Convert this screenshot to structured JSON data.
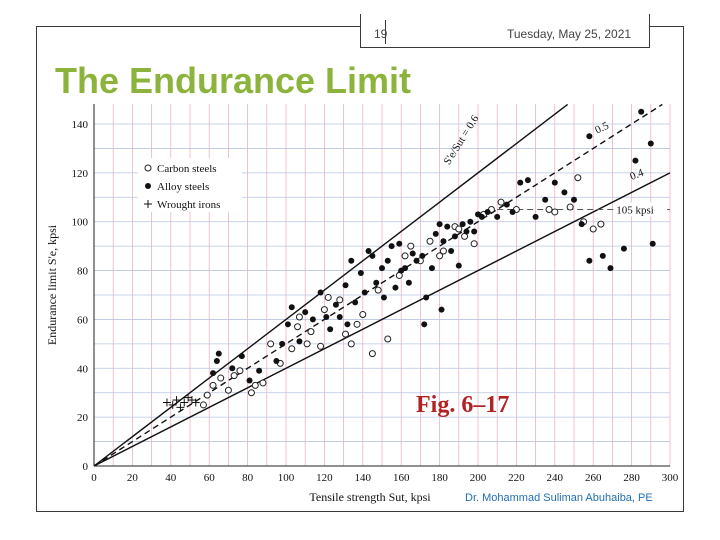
{
  "slide": {
    "number": "19",
    "date": "Tuesday, May 25, 2021",
    "title": "The Endurance Limit",
    "figure_label": "Fig. 6–17",
    "author": "Dr. Mohammad Suliman Abuhaiba, PE"
  },
  "chart_data": {
    "type": "scatter",
    "title": "",
    "xlabel": "Tensile strength Sut, kpsi",
    "ylabel": "Endurance limit S'e, kpsi",
    "xlim": [
      0,
      300
    ],
    "ylim": [
      0,
      140
    ],
    "xticks": [
      "0",
      "20",
      "40",
      "60",
      "80",
      "100",
      "120",
      "140",
      "160",
      "180",
      "200",
      "220",
      "240",
      "260",
      "280",
      "300"
    ],
    "yticks": [
      "0",
      "20",
      "40",
      "60",
      "80",
      "100",
      "120",
      "140"
    ],
    "grid": true,
    "legend_position": "top-left",
    "series": [
      {
        "name": "Carbon steels",
        "marker": "open-circle",
        "color": "#222222",
        "points": [
          [
            57,
            25
          ],
          [
            59,
            29
          ],
          [
            62,
            33
          ],
          [
            66,
            36
          ],
          [
            70,
            31
          ],
          [
            73,
            37
          ],
          [
            76,
            39
          ],
          [
            82,
            30
          ],
          [
            84,
            33
          ],
          [
            88,
            34
          ],
          [
            92,
            50
          ],
          [
            97,
            42
          ],
          [
            103,
            48
          ],
          [
            106,
            57
          ],
          [
            107,
            61
          ],
          [
            111,
            50
          ],
          [
            113,
            55
          ],
          [
            118,
            49
          ],
          [
            120,
            64
          ],
          [
            122,
            69
          ],
          [
            128,
            68
          ],
          [
            131,
            54
          ],
          [
            134,
            50
          ],
          [
            137,
            58
          ],
          [
            140,
            62
          ],
          [
            145,
            46
          ],
          [
            148,
            72
          ],
          [
            153,
            52
          ],
          [
            159,
            78
          ],
          [
            162,
            86
          ],
          [
            165,
            90
          ],
          [
            170,
            84
          ],
          [
            175,
            92
          ],
          [
            180,
            86
          ],
          [
            182,
            88
          ],
          [
            188,
            98
          ],
          [
            190,
            97
          ],
          [
            193,
            94
          ],
          [
            198,
            91
          ],
          [
            203,
            103
          ],
          [
            207,
            105
          ],
          [
            212,
            108
          ],
          [
            220,
            105
          ],
          [
            237,
            105
          ],
          [
            240,
            104
          ],
          [
            248,
            106
          ],
          [
            252,
            118
          ],
          [
            255,
            100
          ],
          [
            260,
            97
          ],
          [
            264,
            99
          ]
        ]
      },
      {
        "name": "Alloy steels",
        "marker": "filled-circle",
        "color": "#111111",
        "points": [
          [
            62,
            38
          ],
          [
            64,
            43
          ],
          [
            65,
            46
          ],
          [
            72,
            40
          ],
          [
            77,
            45
          ],
          [
            81,
            35
          ],
          [
            86,
            39
          ],
          [
            95,
            43
          ],
          [
            98,
            50
          ],
          [
            101,
            58
          ],
          [
            103,
            65
          ],
          [
            107,
            51
          ],
          [
            110,
            63
          ],
          [
            114,
            60
          ],
          [
            118,
            71
          ],
          [
            121,
            61
          ],
          [
            123,
            56
          ],
          [
            126,
            66
          ],
          [
            128,
            61
          ],
          [
            131,
            74
          ],
          [
            132,
            58
          ],
          [
            134,
            84
          ],
          [
            136,
            67
          ],
          [
            139,
            79
          ],
          [
            141,
            71
          ],
          [
            143,
            88
          ],
          [
            145,
            86
          ],
          [
            147,
            75
          ],
          [
            150,
            81
          ],
          [
            151,
            69
          ],
          [
            153,
            84
          ],
          [
            155,
            90
          ],
          [
            157,
            73
          ],
          [
            159,
            91
          ],
          [
            160,
            80
          ],
          [
            162,
            81
          ],
          [
            164,
            75
          ],
          [
            166,
            87
          ],
          [
            168,
            84
          ],
          [
            171,
            86
          ],
          [
            173,
            69
          ],
          [
            176,
            81
          ],
          [
            178,
            95
          ],
          [
            180,
            99
          ],
          [
            182,
            92
          ],
          [
            184,
            98
          ],
          [
            186,
            88
          ],
          [
            188,
            94
          ],
          [
            190,
            82
          ],
          [
            192,
            99
          ],
          [
            194,
            96
          ],
          [
            196,
            100
          ],
          [
            198,
            96
          ],
          [
            200,
            103
          ],
          [
            202,
            102
          ],
          [
            205,
            104
          ],
          [
            210,
            102
          ],
          [
            215,
            107
          ],
          [
            218,
            104
          ],
          [
            222,
            116
          ],
          [
            226,
            117
          ],
          [
            230,
            102
          ],
          [
            235,
            109
          ],
          [
            240,
            116
          ],
          [
            245,
            112
          ],
          [
            250,
            109
          ],
          [
            254,
            99
          ],
          [
            258,
            84
          ],
          [
            265,
            86
          ],
          [
            269,
            81
          ],
          [
            276,
            89
          ],
          [
            282,
            125
          ],
          [
            285,
            145
          ],
          [
            290,
            132
          ],
          [
            291,
            91
          ],
          [
            258,
            135
          ],
          [
            172,
            58
          ],
          [
            181,
            64
          ]
        ]
      },
      {
        "name": "Wrought irons",
        "marker": "plus",
        "color": "#111111",
        "points": [
          [
            38,
            26
          ],
          [
            41,
            25
          ],
          [
            43,
            27
          ],
          [
            45,
            24
          ],
          [
            47,
            26
          ],
          [
            49,
            28
          ],
          [
            51,
            27
          ],
          [
            53,
            26
          ]
        ]
      }
    ],
    "lines": [
      {
        "label": "S'e/Sut = 0.6",
        "slope": 0.6,
        "style": "solid"
      },
      {
        "label": "0.5",
        "slope": 0.5,
        "style": "dashed"
      },
      {
        "label": "0.4",
        "slope": 0.4,
        "style": "solid"
      },
      {
        "label": "105 kpsi",
        "y": 105,
        "x_from": 210,
        "x_to": 300,
        "style": "dashed"
      }
    ]
  }
}
